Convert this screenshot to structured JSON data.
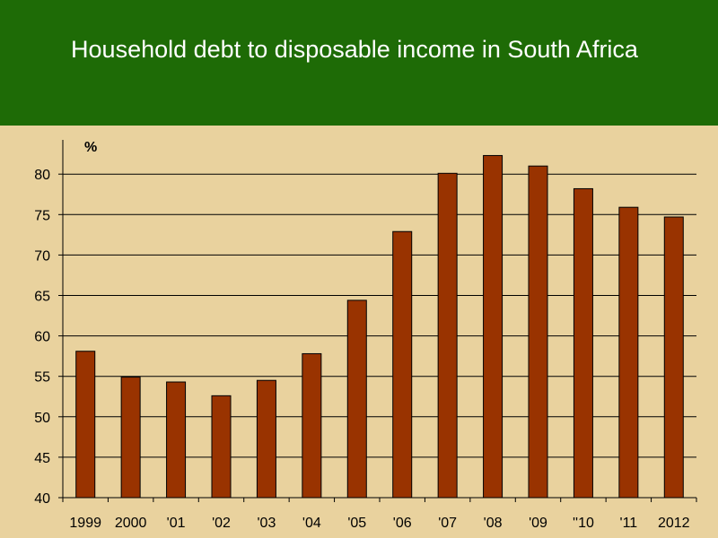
{
  "header": {
    "title": "Household debt to disposable income in South Africa",
    "background_color": "#1e6b06"
  },
  "chart_data": {
    "type": "bar",
    "title": "Household debt to disposable income in South Africa",
    "unit_label": "%",
    "categories": [
      "1999",
      "2000",
      "'01",
      "'02",
      "'03",
      "'04",
      "'05",
      "'06",
      "'07",
      "'08",
      "'09",
      "''10",
      "'11",
      "2012"
    ],
    "values": [
      58.1,
      54.9,
      54.3,
      52.6,
      54.5,
      57.8,
      64.4,
      72.9,
      80.1,
      82.3,
      81.0,
      78.2,
      75.9,
      74.7
    ],
    "ylim": [
      40,
      84
    ],
    "yticks": [
      40,
      45,
      50,
      55,
      60,
      65,
      70,
      75,
      80
    ],
    "grid": true,
    "bar_color": "#993300",
    "background_color": "#e9d29e"
  }
}
